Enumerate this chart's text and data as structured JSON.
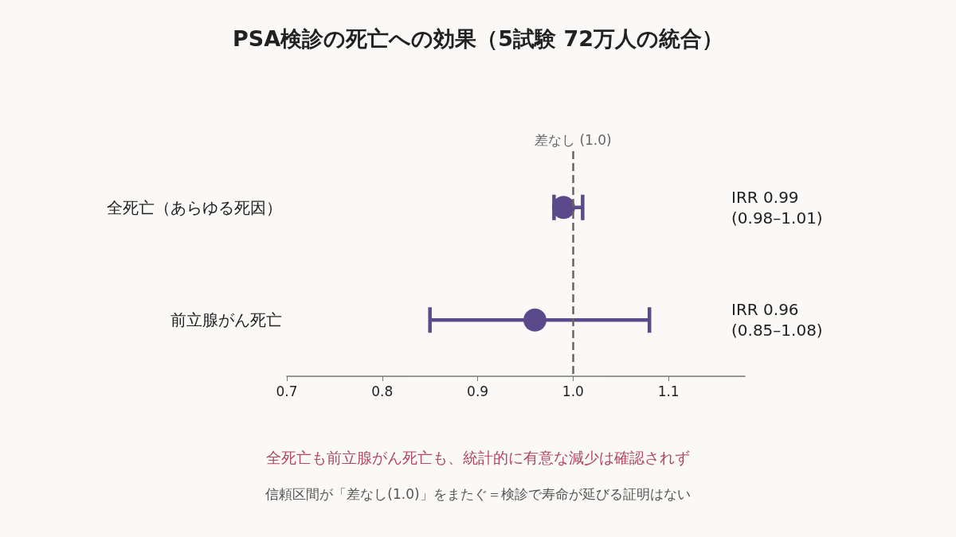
{
  "chart_data": {
    "type": "scatter",
    "orientation": "horizontal",
    "title": "PSA検診の死亡への効果（5試験 72万人の統合）",
    "categories": [
      "全死亡（あらゆる死因）",
      "前立腺がん死亡"
    ],
    "values": [
      0.99,
      0.96
    ],
    "errors": [
      [
        0.98,
        1.01
      ],
      [
        0.85,
        1.08
      ]
    ],
    "color": "#5b4a8b",
    "marker": "circle",
    "xlim": [
      0.7,
      1.18
    ],
    "xticks": [
      0.7,
      0.8,
      0.9,
      {
        "value": 1.0,
        "label": "1.0"
      },
      1.1
    ],
    "ref_lines": [
      {
        "axis": "x",
        "value": 1.0,
        "label": "差なし (1.0)",
        "color": "#666666",
        "line_style": "dashed"
      }
    ],
    "annotations": [
      "IRR 0.99\n(0.98–1.01)",
      "IRR 0.96\n(0.85–1.08)",
      "全死亡も前立腺がん死亡も、統計的に有意な減少は確認されず",
      "信頼区間が「差なし(1.0)」をまたぐ＝検診で寿命が延びる証明はない"
    ]
  }
}
